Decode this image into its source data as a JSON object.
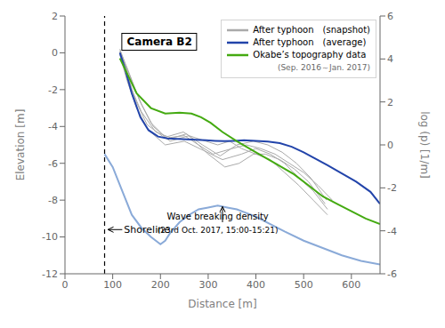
{
  "chart_data": {
    "type": "line",
    "title": "Camera B2",
    "x_label": "Distance [m]",
    "y_label": "Elevation [m]",
    "y2_label": "log (p) [1/m]",
    "xlim": [
      0,
      660
    ],
    "xticks": [
      0,
      100,
      200,
      300,
      400,
      500,
      600
    ],
    "ylim": [
      -12,
      2
    ],
    "yticks": [
      -12,
      -10,
      -8,
      -6,
      -4,
      -2,
      0,
      2
    ],
    "y2lim": [
      -6,
      6
    ],
    "y2ticks": [
      -6,
      -4,
      -2,
      0,
      2,
      4,
      6
    ],
    "grid": false,
    "legend": "upper right",
    "legend_note": "(Sep. 2016～Jan. 2017)",
    "series": [
      {
        "color": "#8aaad8",
        "x": [
          83,
          100,
          120,
          140,
          160,
          180,
          200,
          210,
          220,
          240,
          260,
          280,
          300,
          320,
          340,
          360,
          380,
          400,
          430,
          460,
          500,
          540,
          580,
          620,
          660
        ],
        "values": [
          -5.5,
          -6.2,
          -7.5,
          -8.8,
          -9.5,
          -10.0,
          -10.4,
          -10.2,
          -9.8,
          -9.2,
          -8.8,
          -8.5,
          -8.4,
          -8.3,
          -8.4,
          -8.5,
          -8.7,
          -8.9,
          -9.3,
          -9.7,
          -10.2,
          -10.6,
          -11.0,
          -11.3,
          -11.5
        ]
      },
      {
        "name": "After typhoon　(snapshot)",
        "color": "#aaaaaa",
        "x": [
          115,
          125,
          140,
          160,
          190,
          220,
          250,
          280,
          310,
          350,
          380,
          410,
          440,
          470,
          500,
          530,
          560
        ],
        "values": [
          0.2,
          -0.5,
          -2.0,
          -3.2,
          -4.3,
          -4.6,
          -4.5,
          -5.0,
          -5.5,
          -5.2,
          -5.0,
          -5.2,
          -5.5,
          -6.0,
          -6.5,
          -7.2,
          -8.0
        ]
      },
      {
        "name": "After typhoon　(snapshot)",
        "color": "#aaaaaa",
        "x": [
          115,
          130,
          150,
          175,
          210,
          250,
          290,
          330,
          370,
          400,
          430,
          460,
          490,
          520,
          550
        ],
        "values": [
          -0.1,
          -1.5,
          -3.0,
          -4.2,
          -5.0,
          -4.8,
          -5.3,
          -5.8,
          -5.5,
          -5.2,
          -5.5,
          -6.0,
          -6.8,
          -7.5,
          -8.5
        ]
      },
      {
        "name": "After typhoon　(snapshot)",
        "color": "#aaaaaa",
        "x": [
          115,
          135,
          160,
          185,
          220,
          260,
          295,
          320,
          345,
          370,
          400,
          430,
          460,
          490,
          520,
          550
        ],
        "values": [
          0.0,
          -1.2,
          -2.8,
          -4.0,
          -4.8,
          -4.5,
          -4.8,
          -5.0,
          -4.8,
          -5.2,
          -5.5,
          -5.8,
          -6.5,
          -7.2,
          -8.0,
          -8.8
        ]
      },
      {
        "name": "After typhoon　(snapshot)",
        "color": "#aaaaaa",
        "x": [
          115,
          130,
          155,
          180,
          215,
          255,
          300,
          335,
          365,
          395,
          420,
          450,
          480,
          510,
          545
        ],
        "values": [
          0.1,
          -0.8,
          -2.5,
          -3.8,
          -4.7,
          -4.4,
          -5.5,
          -6.2,
          -6.0,
          -5.5,
          -5.5,
          -5.8,
          -6.3,
          -7.0,
          -8.2
        ]
      },
      {
        "name": "After typhoon　(snapshot)",
        "color": "#aaaaaa",
        "x": [
          115,
          128,
          148,
          172,
          208,
          248,
          288,
          325,
          360,
          395,
          425,
          455,
          485,
          515,
          548
        ],
        "values": [
          0.05,
          -1.0,
          -2.6,
          -3.9,
          -4.6,
          -4.3,
          -5.0,
          -5.6,
          -5.0,
          -4.8,
          -5.0,
          -5.4,
          -6.0,
          -6.8,
          -8.0
        ]
      },
      {
        "name": "After typhoon　(average)",
        "color": "#2244aa",
        "x": [
          115,
          125,
          140,
          158,
          175,
          195,
          215,
          235,
          255,
          275,
          295,
          315,
          335,
          355,
          375,
          400,
          425,
          450,
          475,
          500,
          525,
          550,
          580,
          610,
          640,
          660
        ],
        "values": [
          0.0,
          -0.8,
          -2.2,
          -3.5,
          -4.2,
          -4.55,
          -4.65,
          -4.68,
          -4.7,
          -4.72,
          -4.75,
          -4.78,
          -4.8,
          -4.78,
          -4.75,
          -4.78,
          -4.82,
          -4.9,
          -5.1,
          -5.4,
          -5.75,
          -6.1,
          -6.55,
          -7.0,
          -7.55,
          -8.2
        ]
      },
      {
        "name": "Okabe’s topography data",
        "color": "#44aa11",
        "x": [
          115,
          150,
          180,
          210,
          240,
          265,
          285,
          305,
          330,
          360,
          400,
          440,
          480,
          510,
          540,
          570,
          600,
          630,
          660
        ],
        "values": [
          -0.3,
          -2.2,
          -3.0,
          -3.3,
          -3.25,
          -3.3,
          -3.5,
          -3.8,
          -4.3,
          -4.8,
          -5.4,
          -6.0,
          -6.6,
          -7.2,
          -7.8,
          -8.2,
          -8.6,
          -9.0,
          -9.3
        ]
      }
    ],
    "vlines": [
      {
        "x": 83,
        "color": "#000000",
        "line_style": "dashed"
      }
    ],
    "annotations": [
      {
        "text": "Shoreline",
        "x": 120,
        "y": -9.6,
        "arrow_from": [
          120,
          -9.6
        ],
        "arrow_to": [
          90,
          -9.6
        ]
      },
      {
        "text": "Wave breaking density",
        "subtext": "(23rd Oct. 2017, 15:00-15:21)",
        "x": 320,
        "y": -9.2,
        "arrow_from": [
          330,
          -9.2
        ],
        "arrow_to": [
          330,
          -8.35
        ]
      }
    ]
  }
}
